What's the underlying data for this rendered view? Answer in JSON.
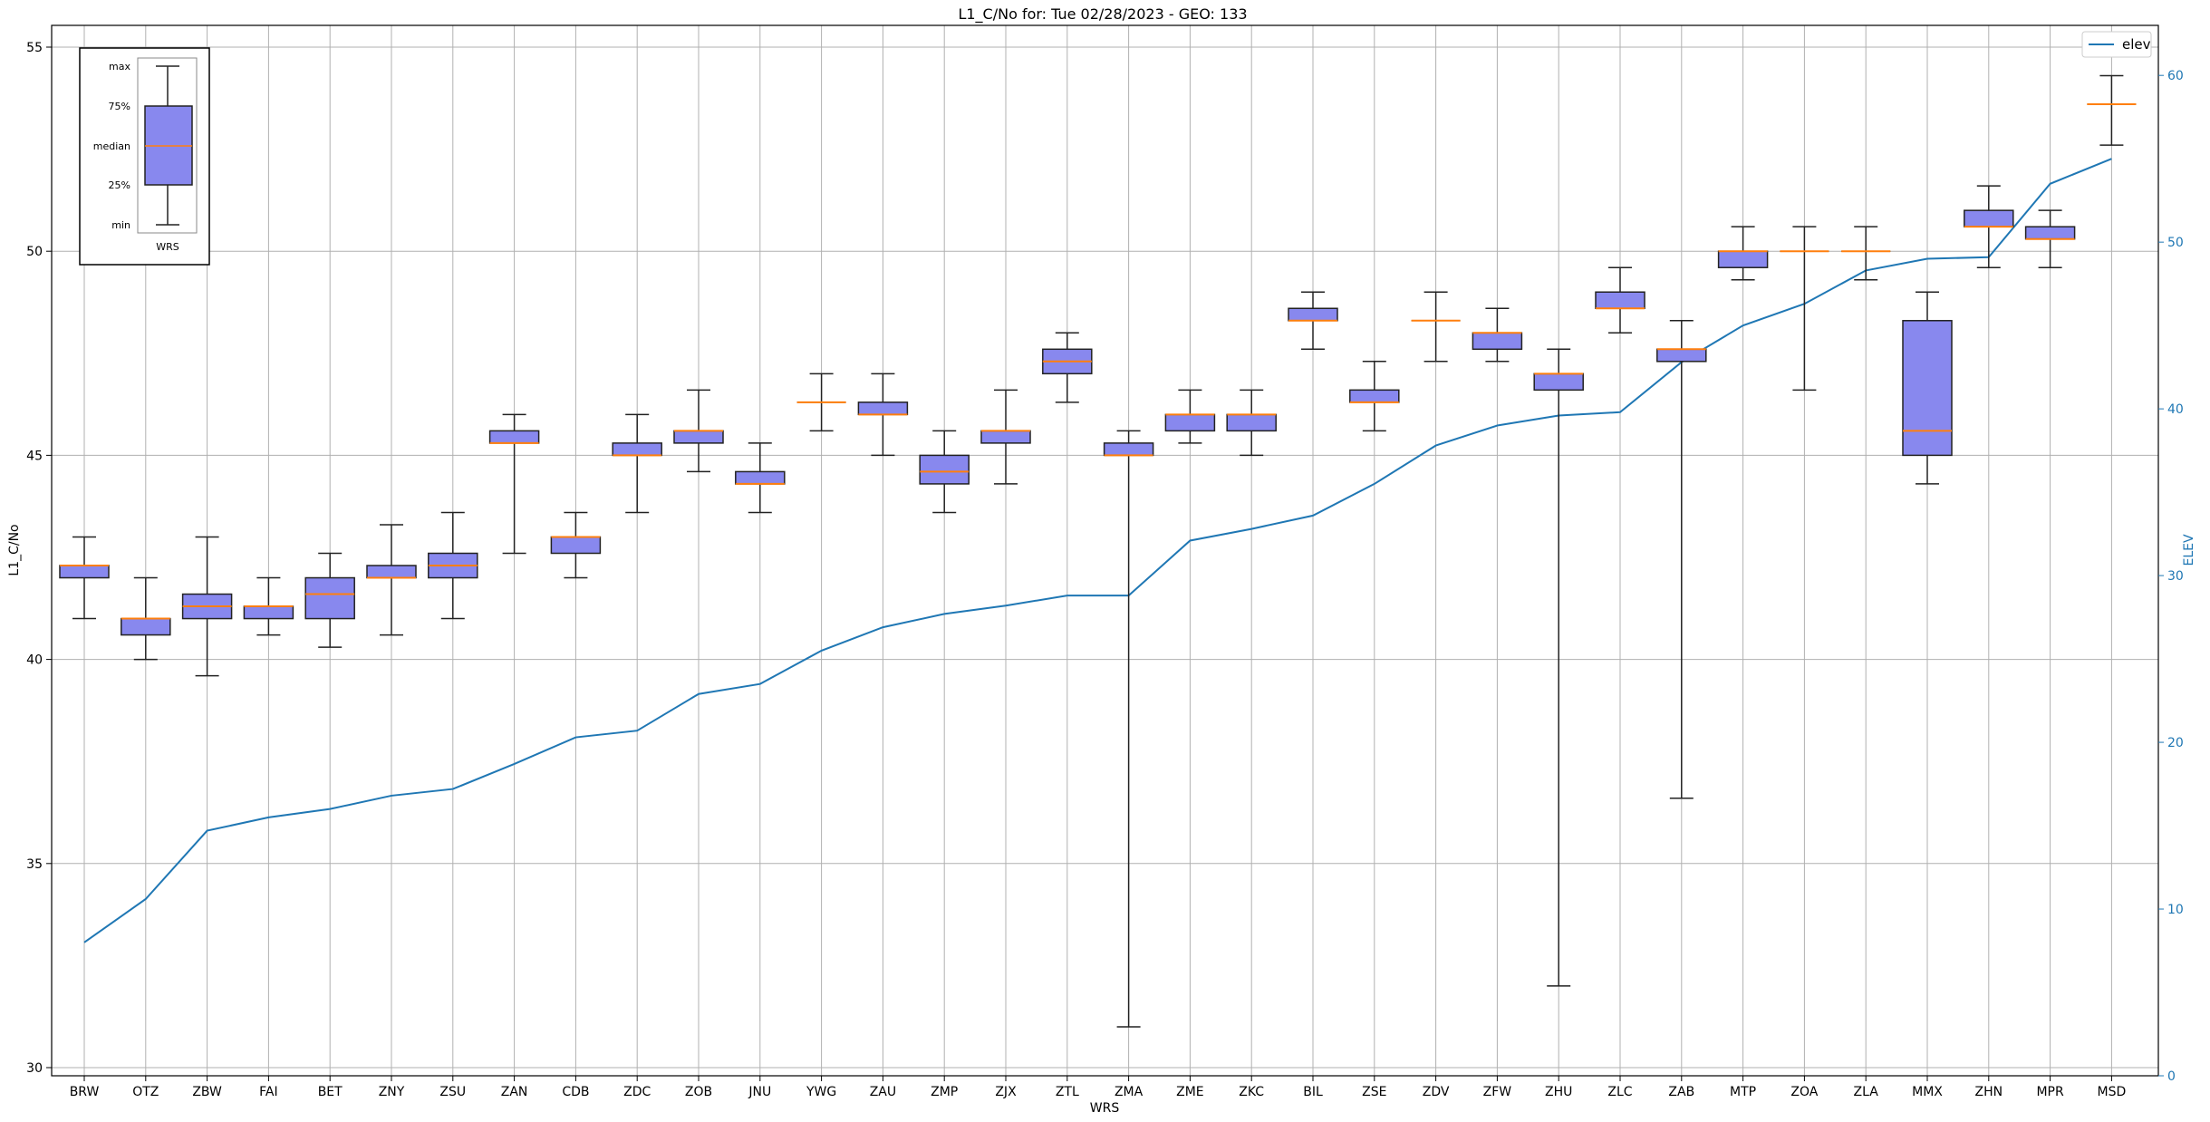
{
  "chart_data": {
    "type": "box",
    "title": "L1_C/No for: Tue 02/28/2023 - GEO: 133",
    "xlabel": "WRS",
    "ylabel": "L1_C/No",
    "y2label": "ELEV",
    "ylim": [
      30,
      55
    ],
    "y2lim": [
      0,
      63
    ],
    "yticks": [
      30,
      35,
      40,
      45,
      50,
      55
    ],
    "y2ticks": [
      0,
      10,
      20,
      30,
      40,
      50,
      60
    ],
    "grid": true,
    "legend": {
      "position": "top-right",
      "entries": [
        "elev"
      ]
    },
    "colors": {
      "box_fill": "#8888ee",
      "box_edge": "#222222",
      "median": "#ff7f0e",
      "elev_line": "#1f77b4",
      "right_axis": "#1f77b4"
    },
    "categories": [
      "BRW",
      "OTZ",
      "ZBW",
      "FAI",
      "BET",
      "ZNY",
      "ZSU",
      "ZAN",
      "CDB",
      "ZDC",
      "ZOB",
      "JNU",
      "YWG",
      "ZAU",
      "ZMP",
      "ZJX",
      "ZTL",
      "ZMA",
      "ZME",
      "ZKC",
      "BIL",
      "ZSE",
      "ZDV",
      "ZFW",
      "ZHU",
      "ZLC",
      "ZAB",
      "MTP",
      "ZOA",
      "ZLA",
      "MMX",
      "ZHN",
      "MPR",
      "MSD"
    ],
    "boxes": [
      {
        "min": 41.0,
        "q1": 42.0,
        "median": 42.3,
        "q3": 42.3,
        "max": 43.0
      },
      {
        "min": 40.0,
        "q1": 40.6,
        "median": 41.0,
        "q3": 41.0,
        "max": 42.0
      },
      {
        "min": 39.6,
        "q1": 41.0,
        "median": 41.3,
        "q3": 41.6,
        "max": 43.0
      },
      {
        "min": 40.6,
        "q1": 41.0,
        "median": 41.3,
        "q3": 41.3,
        "max": 42.0
      },
      {
        "min": 40.3,
        "q1": 41.0,
        "median": 41.6,
        "q3": 42.0,
        "max": 42.6
      },
      {
        "min": 40.6,
        "q1": 42.0,
        "median": 42.0,
        "q3": 42.3,
        "max": 43.3
      },
      {
        "min": 41.0,
        "q1": 42.0,
        "median": 42.3,
        "q3": 42.6,
        "max": 43.6
      },
      {
        "min": 42.6,
        "q1": 45.3,
        "median": 45.3,
        "q3": 45.6,
        "max": 46.0
      },
      {
        "min": 42.0,
        "q1": 42.6,
        "median": 43.0,
        "q3": 43.0,
        "max": 43.6
      },
      {
        "min": 43.6,
        "q1": 45.0,
        "median": 45.0,
        "q3": 45.3,
        "max": 46.0
      },
      {
        "min": 44.6,
        "q1": 45.3,
        "median": 45.6,
        "q3": 45.6,
        "max": 46.6
      },
      {
        "min": 43.6,
        "q1": 44.3,
        "median": 44.3,
        "q3": 44.6,
        "max": 45.3
      },
      {
        "min": 45.6,
        "q1": 46.3,
        "median": 46.3,
        "q3": 46.3,
        "max": 47.0
      },
      {
        "min": 45.0,
        "q1": 46.0,
        "median": 46.0,
        "q3": 46.3,
        "max": 47.0
      },
      {
        "min": 43.6,
        "q1": 44.3,
        "median": 44.6,
        "q3": 45.0,
        "max": 45.6
      },
      {
        "min": 44.3,
        "q1": 45.3,
        "median": 45.6,
        "q3": 45.6,
        "max": 46.6
      },
      {
        "min": 46.3,
        "q1": 47.0,
        "median": 47.3,
        "q3": 47.6,
        "max": 48.0
      },
      {
        "min": 31.0,
        "q1": 45.0,
        "median": 45.0,
        "q3": 45.3,
        "max": 45.6
      },
      {
        "min": 45.3,
        "q1": 45.6,
        "median": 46.0,
        "q3": 46.0,
        "max": 46.6
      },
      {
        "min": 45.0,
        "q1": 45.6,
        "median": 46.0,
        "q3": 46.0,
        "max": 46.6
      },
      {
        "min": 47.6,
        "q1": 48.3,
        "median": 48.3,
        "q3": 48.6,
        "max": 49.0
      },
      {
        "min": 45.6,
        "q1": 46.3,
        "median": 46.3,
        "q3": 46.6,
        "max": 47.3
      },
      {
        "min": 47.3,
        "q1": 48.3,
        "median": 48.3,
        "q3": 48.3,
        "max": 49.0
      },
      {
        "min": 47.3,
        "q1": 47.6,
        "median": 48.0,
        "q3": 48.0,
        "max": 48.6
      },
      {
        "min": 32.0,
        "q1": 46.6,
        "median": 47.0,
        "q3": 47.0,
        "max": 47.6
      },
      {
        "min": 48.0,
        "q1": 48.6,
        "median": 48.6,
        "q3": 49.0,
        "max": 49.6
      },
      {
        "min": 36.6,
        "q1": 47.3,
        "median": 47.6,
        "q3": 47.6,
        "max": 48.3
      },
      {
        "min": 49.3,
        "q1": 49.6,
        "median": 50.0,
        "q3": 50.0,
        "max": 50.6
      },
      {
        "min": 46.6,
        "q1": 50.0,
        "median": 50.0,
        "q3": 50.0,
        "max": 50.6
      },
      {
        "min": 49.3,
        "q1": 50.0,
        "median": 50.0,
        "q3": 50.0,
        "max": 50.6
      },
      {
        "min": 44.3,
        "q1": 45.0,
        "median": 45.6,
        "q3": 48.3,
        "max": 49.0
      },
      {
        "min": 49.6,
        "q1": 50.6,
        "median": 50.6,
        "q3": 51.0,
        "max": 51.6
      },
      {
        "min": 49.6,
        "q1": 50.3,
        "median": 50.3,
        "q3": 50.6,
        "max": 51.0
      },
      {
        "min": 52.6,
        "q1": 53.6,
        "median": 53.6,
        "q3": 53.6,
        "max": 54.3
      }
    ],
    "series": [
      {
        "name": "elev",
        "axis": "right",
        "values": [
          8.0,
          10.6,
          14.7,
          15.5,
          16.0,
          16.8,
          17.2,
          18.7,
          20.3,
          20.7,
          22.9,
          23.5,
          25.5,
          26.9,
          27.7,
          28.2,
          28.8,
          28.8,
          32.1,
          32.8,
          33.6,
          35.5,
          37.8,
          39.0,
          39.6,
          39.8,
          42.8,
          45.0,
          46.3,
          48.3,
          49.0,
          49.1,
          53.5,
          55.0
        ]
      }
    ],
    "legend_inset": {
      "labels": [
        "max",
        "75%",
        "median",
        "25%",
        "min"
      ],
      "xlabel": "WRS"
    }
  }
}
